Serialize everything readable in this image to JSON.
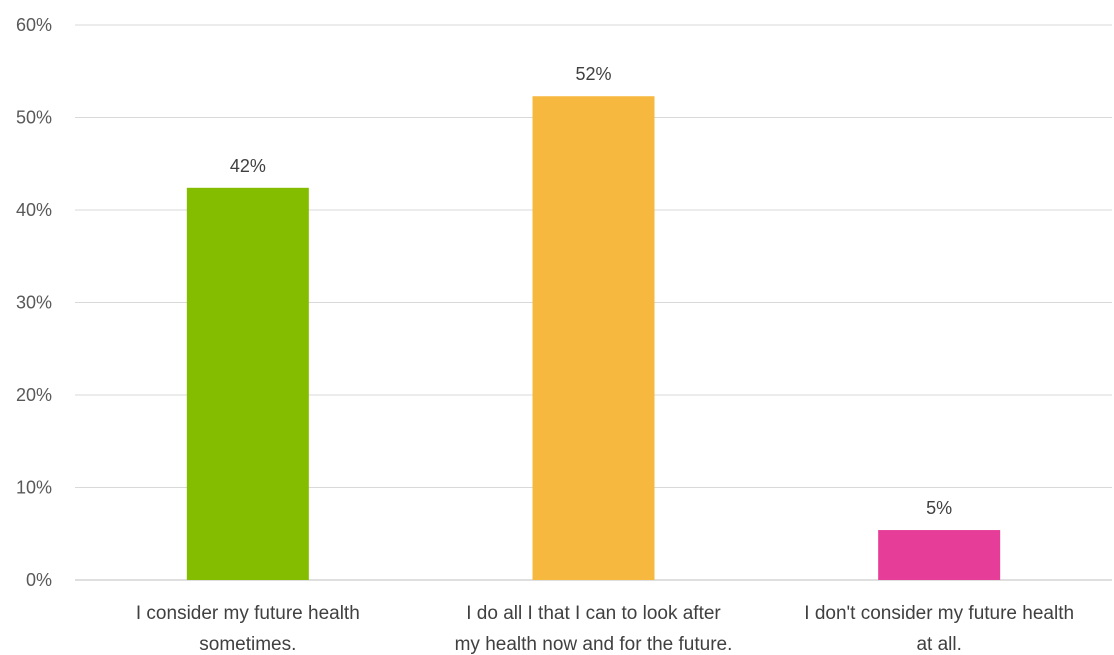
{
  "chart_data": {
    "type": "bar",
    "categories": [
      [
        "I consider my future health",
        "sometimes."
      ],
      [
        "I do all I that I can to look after",
        "my health now and for the future."
      ],
      [
        "I don't consider my future health",
        "at all."
      ]
    ],
    "values": [
      42.4,
      52.3,
      5.4
    ],
    "data_labels": [
      "42%",
      "52%",
      "5%"
    ],
    "colors": [
      "#84BD00",
      "#F7B83F",
      "#E63E98"
    ],
    "ylim": [
      0,
      60
    ],
    "yticks": [
      0,
      10,
      20,
      30,
      40,
      50,
      60
    ],
    "ytick_labels": [
      "0%",
      "10%",
      "20%",
      "30%",
      "40%",
      "50%",
      "60%"
    ],
    "grid": true,
    "legend": "none"
  }
}
